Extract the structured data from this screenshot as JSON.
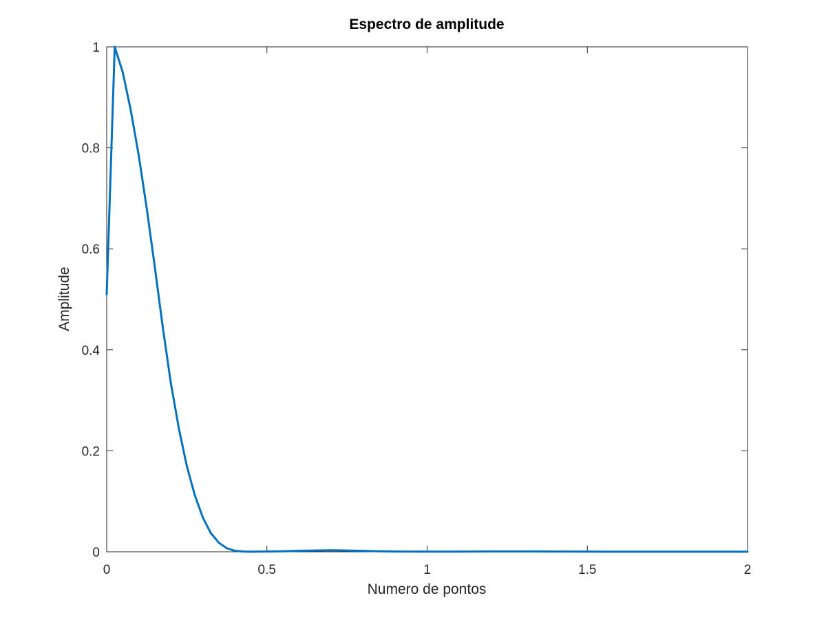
{
  "chart_data": {
    "type": "line",
    "title": "Espectro de amplitude",
    "xlabel": "Numero de pontos",
    "ylabel": "Amplitude",
    "xlim": [
      0,
      2
    ],
    "ylim": [
      0,
      1
    ],
    "xticks": [
      0,
      0.5,
      1,
      1.5,
      2
    ],
    "xtick_labels": [
      "0",
      "0.5",
      "1",
      "1.5",
      "2"
    ],
    "yticks": [
      0,
      0.2,
      0.4,
      0.6,
      0.8,
      1
    ],
    "ytick_labels": [
      "0",
      "0.2",
      "0.4",
      "0.6",
      "0.8",
      "1"
    ],
    "grid": false,
    "line_color": "#0072BD",
    "series": [
      {
        "x": [
          0,
          0.025,
          0.05,
          0.075,
          0.1,
          0.125,
          0.15,
          0.175,
          0.2,
          0.225,
          0.25,
          0.275,
          0.3,
          0.325,
          0.35,
          0.375,
          0.4,
          0.425,
          0.45,
          0.5,
          0.55,
          0.6,
          0.65,
          0.7,
          0.75,
          0.8,
          0.85,
          0.9,
          1.0,
          1.1,
          1.2,
          1.3,
          1.4,
          1.5,
          1.6,
          1.7,
          1.8,
          1.9,
          2.0
        ],
        "y": [
          0.51,
          1.0,
          0.95,
          0.875,
          0.785,
          0.68,
          0.565,
          0.445,
          0.335,
          0.245,
          0.17,
          0.112,
          0.068,
          0.037,
          0.018,
          0.007,
          0.002,
          0.0005,
          0.0002,
          0.0005,
          0.001,
          0.002,
          0.0025,
          0.003,
          0.0025,
          0.0018,
          0.001,
          0.0005,
          0.0003,
          0.0004,
          0.0006,
          0.0007,
          0.0005,
          0.0003,
          0.0002,
          0.0002,
          0.0001,
          0.0001,
          0.0001
        ]
      }
    ]
  }
}
